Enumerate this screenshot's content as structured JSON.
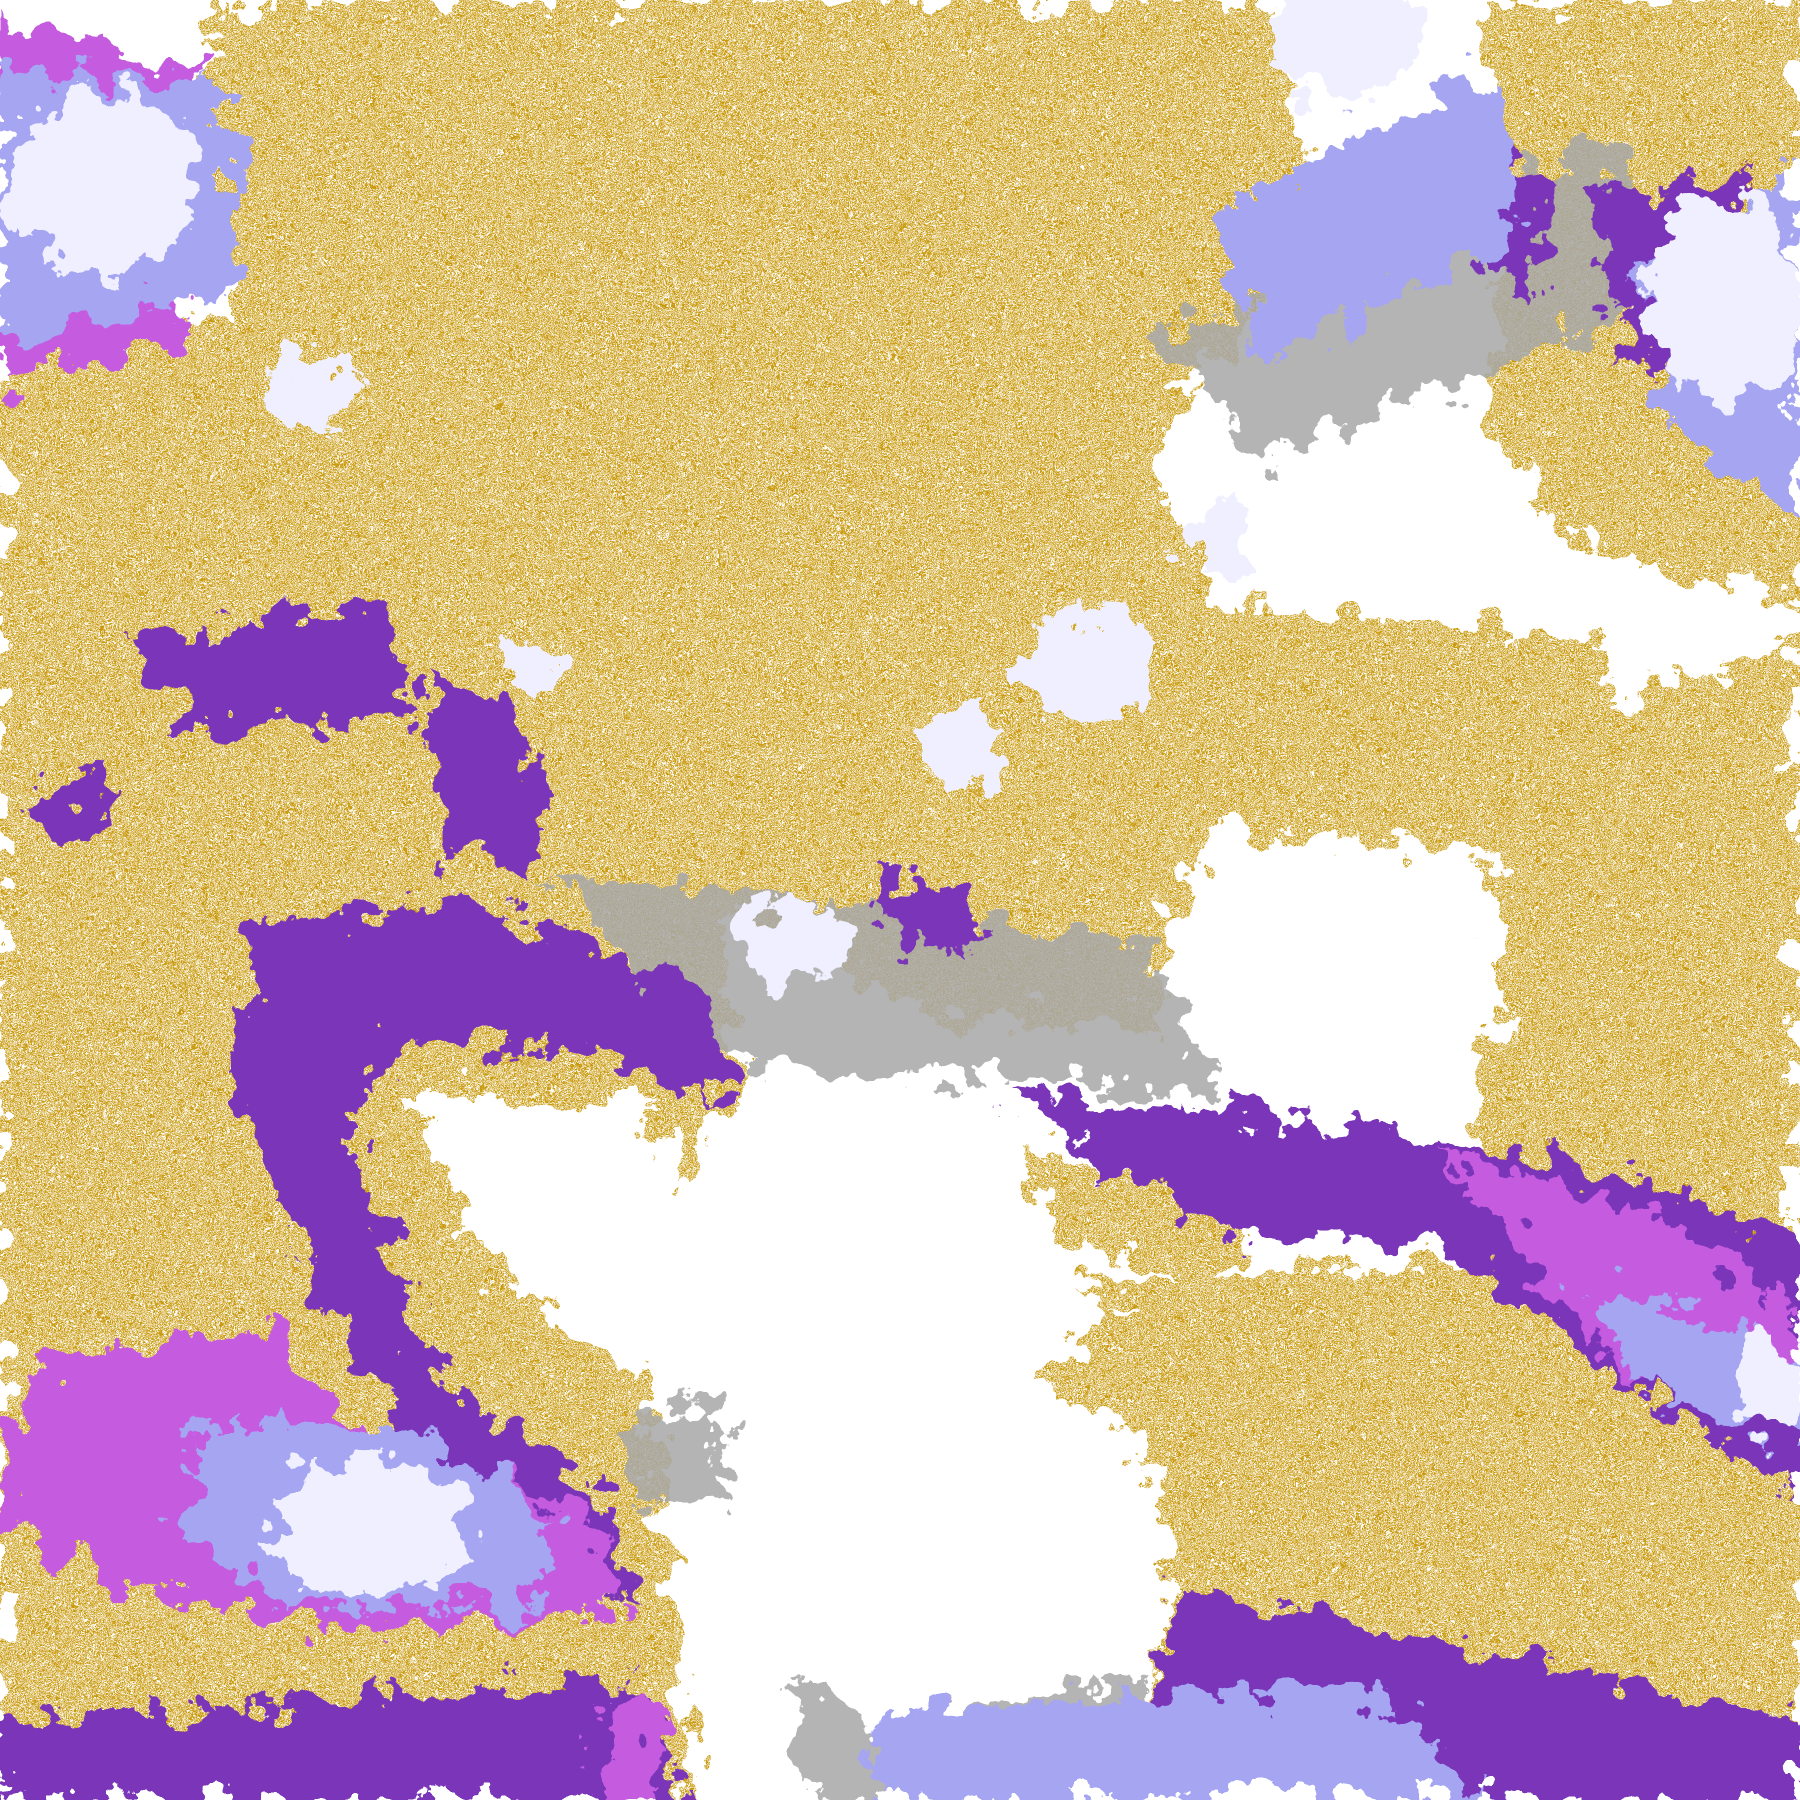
{
  "image": {
    "kind": "false-color satellite cloud classification",
    "colors": {
      "clear": "#ffffff",
      "low_cloud": "#c99a0c",
      "mid_cloud": "#7a35b8",
      "high_cloud": "#c55be0",
      "thick_cloud": "#a5a5f2",
      "cloud_top": "#efefff",
      "thin_edge": "#a8a8a8"
    }
  }
}
